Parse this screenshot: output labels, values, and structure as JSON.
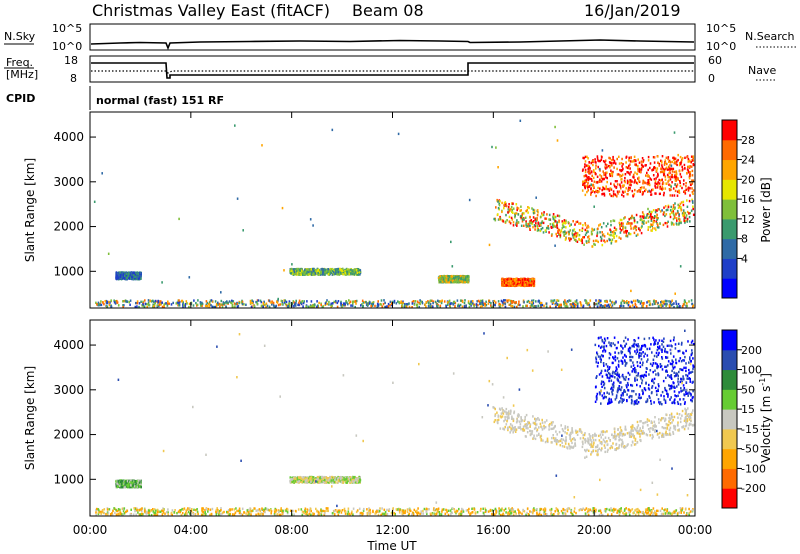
{
  "header": {
    "title": "Christmas Valley East (fitACF)",
    "beam": "Beam 08",
    "date": "16/Jan/2019"
  },
  "top_panels": {
    "nsky_label": "N.Sky",
    "nsky_ticks": [
      "10^5",
      "10^0"
    ],
    "nsearch_label": "N.Search",
    "nsearch_ticks": [
      "10^5",
      "10^0"
    ],
    "freq_label": "Freq.",
    "freq_unit": "[MHz]",
    "freq_ticks": [
      "18",
      "8"
    ],
    "nave_label": "Nave",
    "nave_ticks": [
      "60",
      "0"
    ],
    "cpid_label": "CPID",
    "cpid_value": "normal (fast) 151 RF"
  },
  "chart_data": [
    {
      "type": "heatmap",
      "name": "power",
      "ylabel": "Slant Range [km]",
      "y_ticks": [
        "4000",
        "3000",
        "2000",
        "1000"
      ],
      "y_tick_values": [
        4000,
        3000,
        2000,
        1000
      ],
      "ylim": [
        180,
        4560
      ],
      "xlim": [
        0,
        24
      ],
      "colorbar": {
        "label": "Power [dB]",
        "ticks": [
          "28",
          "24",
          "20",
          "16",
          "12",
          "8",
          "4"
        ],
        "colors": [
          "#0000ff",
          "#1f3fc8",
          "#2f6aa6",
          "#3a9a6e",
          "#7fbf3a",
          "#e6e600",
          "#ffa500",
          "#ff6a00",
          "#ff0000"
        ]
      },
      "regions": [
        {
          "t": [
            0.2,
            24
          ],
          "r": [
            180,
            380
          ],
          "level": "mixed-low"
        },
        {
          "t": [
            1.0,
            2.0
          ],
          "r": [
            850,
            1000
          ],
          "level": "low"
        },
        {
          "t": [
            7.9,
            10.7
          ],
          "r": [
            950,
            1080
          ],
          "level": "mixed"
        },
        {
          "t": [
            13.8,
            15.0
          ],
          "r": [
            780,
            920
          ],
          "level": "mid"
        },
        {
          "t": [
            16.3,
            17.6
          ],
          "r": [
            700,
            860
          ],
          "level": "high"
        },
        {
          "t": [
            16.0,
            24.0
          ],
          "r": [
            1400,
            2600
          ],
          "level": "high-band"
        },
        {
          "t": [
            19.5,
            24.0
          ],
          "r": [
            2700,
            3600
          ],
          "level": "very-high"
        }
      ]
    },
    {
      "type": "heatmap",
      "name": "velocity",
      "ylabel": "Slant Range [km]",
      "y_ticks": [
        "4000",
        "3000",
        "2000",
        "1000"
      ],
      "y_tick_values": [
        4000,
        3000,
        2000,
        1000
      ],
      "ylim": [
        180,
        4560
      ],
      "xlim": [
        0,
        24
      ],
      "colorbar": {
        "label": "Velocity [m s",
        "label_sup": "-1",
        "label_end": "]",
        "ticks": [
          "200",
          "100",
          "50",
          "15",
          "-15",
          "-50",
          "-100",
          "-200"
        ],
        "colors": [
          "#ff0000",
          "#ff6a00",
          "#ffa500",
          "#f0c850",
          "#c8c8c0",
          "#66cc33",
          "#2e8b3a",
          "#2a4db0",
          "#0000ff"
        ]
      },
      "regions": [
        {
          "t": [
            0.2,
            24
          ],
          "r": [
            180,
            380
          ],
          "level": "orange-ground"
        },
        {
          "t": [
            1.0,
            2.0
          ],
          "r": [
            850,
            1000
          ],
          "level": "green"
        },
        {
          "t": [
            7.9,
            10.7
          ],
          "r": [
            950,
            1080
          ],
          "level": "green-grey"
        },
        {
          "t": [
            16.0,
            24.0
          ],
          "r": [
            1400,
            2600
          ],
          "level": "grey"
        },
        {
          "t": [
            20.0,
            24.0
          ],
          "r": [
            2700,
            4200
          ],
          "level": "blue"
        }
      ]
    }
  ],
  "xaxis": {
    "label": "Time UT",
    "ticks": [
      "00:00",
      "04:00",
      "08:00",
      "12:00",
      "16:00",
      "20:00",
      "00:00"
    ],
    "tick_hours": [
      0,
      4,
      8,
      12,
      16,
      20,
      24
    ]
  }
}
